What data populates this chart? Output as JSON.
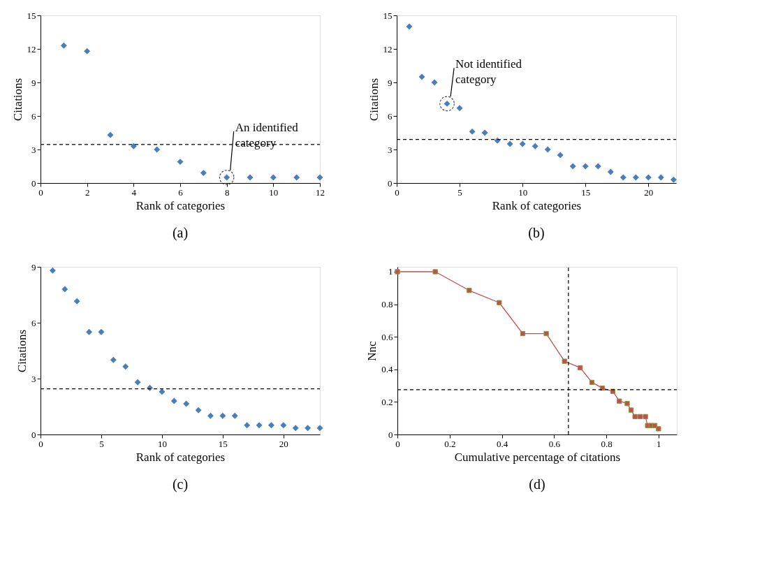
{
  "chart_data": [
    {
      "type": "scatter",
      "title": "(a)",
      "xlabel": "Rank of categories",
      "ylabel": "Citations",
      "marker": "diamond",
      "grid": false,
      "legend": false,
      "x": [
        1,
        2,
        3,
        4,
        5,
        6,
        7,
        8,
        9,
        10,
        11,
        12
      ],
      "series": [
        {
          "color": "#4a7ebb",
          "values": [
            12.3,
            11.8,
            4.3,
            3.3,
            3.0,
            1.9,
            0.9,
            0.5,
            0.5,
            0.5,
            0.5,
            0.5
          ]
        }
      ],
      "xlim": [
        0,
        12
      ],
      "xticks": [
        0,
        2,
        4,
        6,
        8,
        10,
        12
      ],
      "ylim": [
        0,
        15
      ],
      "yticks": [
        0,
        3,
        6,
        9,
        12,
        15
      ],
      "ref_lines": [
        {
          "axis": "y",
          "value": 3.45,
          "line_style": "dashed",
          "color": "#000000"
        }
      ],
      "annotations": [
        {
          "text": "An identified\ncategory",
          "x": 8,
          "y": 0.5
        }
      ]
    },
    {
      "type": "scatter",
      "title": "(b)",
      "xlabel": "Rank of categories",
      "ylabel": "Citations",
      "marker": "diamond",
      "grid": false,
      "legend": false,
      "x": [
        1,
        2,
        3,
        4,
        5,
        6,
        7,
        8,
        9,
        10,
        11,
        12,
        13,
        14,
        15,
        16,
        17,
        18,
        19,
        20,
        21,
        22
      ],
      "series": [
        {
          "color": "#4a7ebb",
          "values": [
            14,
            9.5,
            9,
            7.1,
            6.7,
            4.6,
            4.5,
            3.8,
            3.5,
            3.5,
            3.3,
            3.0,
            2.5,
            1.5,
            1.5,
            1.5,
            1.0,
            0.5,
            0.5,
            0.5,
            0.5,
            0.3
          ]
        }
      ],
      "xlim": [
        0,
        22.2
      ],
      "xticks": [
        0,
        5,
        10,
        15,
        20
      ],
      "ylim": [
        0,
        15
      ],
      "yticks": [
        0,
        3,
        6,
        9,
        12,
        15
      ],
      "ref_lines": [
        {
          "axis": "y",
          "value": 3.9,
          "line_style": "dashed",
          "color": "#000000"
        }
      ],
      "annotations": [
        {
          "text": "Not identified\ncategory",
          "x": 4,
          "y": 7.1
        }
      ]
    },
    {
      "type": "scatter",
      "title": "(c)",
      "xlabel": "Rank of categories",
      "ylabel": "Citations",
      "marker": "diamond",
      "grid": false,
      "legend": false,
      "x": [
        1,
        2,
        3,
        4,
        5,
        6,
        7,
        8,
        9,
        10,
        11,
        12,
        13,
        14,
        15,
        16,
        17,
        18,
        19,
        20,
        21,
        22,
        23
      ],
      "series": [
        {
          "color": "#4a7ebb",
          "values": [
            8.8,
            7.8,
            7.15,
            5.5,
            5.5,
            4.0,
            3.65,
            2.8,
            2.5,
            2.3,
            1.8,
            1.65,
            1.3,
            1.0,
            1.0,
            1.0,
            0.5,
            0.5,
            0.5,
            0.5,
            0.35,
            0.35,
            0.35
          ]
        }
      ],
      "xlim": [
        0,
        23
      ],
      "xticks": [
        0,
        5,
        10,
        15,
        20
      ],
      "ylim": [
        0,
        9
      ],
      "yticks": [
        0,
        3,
        6,
        9
      ],
      "ref_lines": [
        {
          "axis": "y",
          "value": 2.45,
          "line_style": "dashed",
          "color": "#000000"
        }
      ]
    },
    {
      "type": "line",
      "title": "(d)",
      "xlabel": "Cumulative percentage of citations",
      "ylabel": "Nnc",
      "marker": "square",
      "line_style": "solid",
      "grid": false,
      "legend": false,
      "x": [
        0,
        0.145,
        0.275,
        0.39,
        0.48,
        0.57,
        0.64,
        0.7,
        0.745,
        0.785,
        0.825,
        0.85,
        0.88,
        0.895,
        0.91,
        0.93,
        0.95,
        0.958,
        0.972,
        0.986,
        1.0
      ],
      "series": [
        {
          "color": "#c0504d",
          "values": [
            1.0,
            1.0,
            0.885,
            0.81,
            0.62,
            0.62,
            0.45,
            0.41,
            0.32,
            0.285,
            0.265,
            0.205,
            0.19,
            0.15,
            0.11,
            0.11,
            0.11,
            0.055,
            0.055,
            0.055,
            0.035
          ]
        }
      ],
      "xlim": [
        0,
        1.07
      ],
      "xticks": [
        0,
        0.2,
        0.4,
        0.6,
        0.8,
        1
      ],
      "ylim": [
        0,
        1.03
      ],
      "yticks": [
        0,
        0.2,
        0.4,
        0.6,
        0.8,
        1
      ],
      "ref_lines": [
        {
          "axis": "x",
          "value": 0.655,
          "line_style": "dashed",
          "color": "#000000"
        },
        {
          "axis": "y",
          "value": 0.275,
          "line_style": "dashed",
          "color": "#000000"
        }
      ]
    }
  ]
}
